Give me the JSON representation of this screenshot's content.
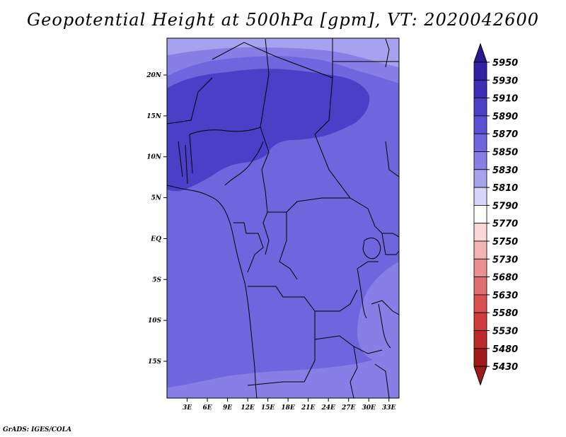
{
  "title": "Geopotential Height at 500hPa [gpm], VT: 2020042600",
  "footer": "GrADS: IGES/COLA",
  "map": {
    "lon_range": [
      0,
      34.5
    ],
    "lat_range": [
      -19.5,
      24.5
    ],
    "x_ticks": [
      {
        "value": 3,
        "label": "3E"
      },
      {
        "value": 6,
        "label": "6E"
      },
      {
        "value": 9,
        "label": "9E"
      },
      {
        "value": 12,
        "label": "12E"
      },
      {
        "value": 15,
        "label": "15E"
      },
      {
        "value": 18,
        "label": "18E"
      },
      {
        "value": 21,
        "label": "21E"
      },
      {
        "value": 24,
        "label": "24E"
      },
      {
        "value": 27,
        "label": "27E"
      },
      {
        "value": 30,
        "label": "30E"
      },
      {
        "value": 33,
        "label": "33E"
      }
    ],
    "y_ticks": [
      {
        "value": 20,
        "label": "20N"
      },
      {
        "value": 15,
        "label": "15N"
      },
      {
        "value": 10,
        "label": "10N"
      },
      {
        "value": 5,
        "label": "5N"
      },
      {
        "value": 0,
        "label": "EQ"
      },
      {
        "value": -5,
        "label": "5S"
      },
      {
        "value": -10,
        "label": "10S"
      },
      {
        "value": -15,
        "label": "15S"
      }
    ]
  },
  "colorbar": {
    "levels": [
      {
        "label": "5950",
        "color": "#2a1a8f"
      },
      {
        "label": "5930",
        "color": "#3122a3"
      },
      {
        "label": "5910",
        "color": "#3a2fb6"
      },
      {
        "label": "5890",
        "color": "#4a40c8"
      },
      {
        "label": "5870",
        "color": "#5a52d4"
      },
      {
        "label": "5850",
        "color": "#6d66dd"
      },
      {
        "label": "5830",
        "color": "#8680e6"
      },
      {
        "label": "5810",
        "color": "#a6a2ee"
      },
      {
        "label": "5790",
        "color": "#d8d6f8"
      },
      {
        "label": "5770",
        "color": "#ffffff"
      },
      {
        "label": "5750",
        "color": "#fbd8d8"
      },
      {
        "label": "5730",
        "color": "#f4b4b4"
      },
      {
        "label": "5680",
        "color": "#eb9090"
      },
      {
        "label": "5630",
        "color": "#e07070"
      },
      {
        "label": "5580",
        "color": "#d85050"
      },
      {
        "label": "5530",
        "color": "#d03a3a"
      },
      {
        "label": "5480",
        "color": "#bc2a2a"
      },
      {
        "label": "5430",
        "color": "#a01a1a"
      }
    ],
    "top_color": "#2a1a8f",
    "bottom_color": "#a01a1a"
  },
  "colors": {
    "base_field": "#6d66dd",
    "light_field": "#8680e6",
    "lighter_field": "#a6a2ee",
    "dark_field": "#5a52d4",
    "darkest_field": "#4a40c8",
    "borders": "#000000"
  }
}
